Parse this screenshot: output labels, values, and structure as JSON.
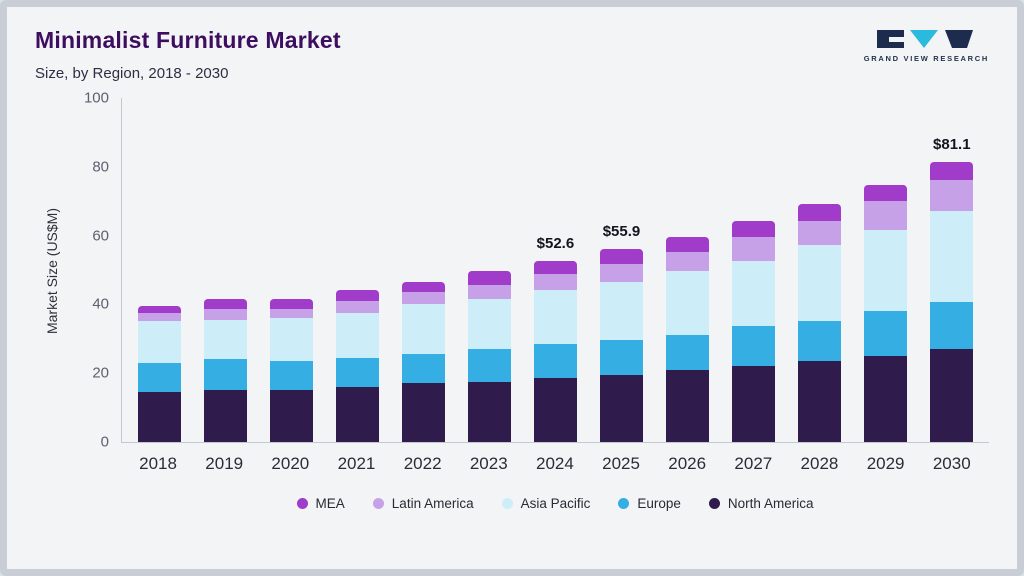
{
  "header": {
    "title": "Minimalist Furniture Market",
    "subtitle": "Size, by Region, 2018 - 2030",
    "logo_text": "GRAND VIEW RESEARCH"
  },
  "chart_data": {
    "type": "bar",
    "stacked": true,
    "title": "Minimalist Furniture Market Size, by Region, 2018 - 2030",
    "xlabel": "",
    "ylabel": "Market Size (US$M)",
    "ylim": [
      0,
      100
    ],
    "yticks": [
      0,
      20,
      40,
      60,
      80,
      100
    ],
    "grid": false,
    "legend_position": "bottom",
    "categories": [
      "2018",
      "2019",
      "2020",
      "2021",
      "2022",
      "2023",
      "2024",
      "2025",
      "2026",
      "2027",
      "2028",
      "2029",
      "2030"
    ],
    "series": [
      {
        "name": "North America",
        "color": "#2f1b4c",
        "values": [
          14.5,
          15.0,
          15.0,
          16.0,
          17.0,
          17.5,
          18.5,
          19.5,
          21.0,
          22.0,
          23.5,
          25.0,
          27.0
        ]
      },
      {
        "name": "Europe",
        "color": "#35aee3",
        "values": [
          8.5,
          9.0,
          8.5,
          8.5,
          8.5,
          9.5,
          10.0,
          10.0,
          10.0,
          11.5,
          11.5,
          13.0,
          13.5
        ]
      },
      {
        "name": "Asia Pacific",
        "color": "#cdeef8",
        "values": [
          12.0,
          11.5,
          12.5,
          13.0,
          14.5,
          14.5,
          15.5,
          17.0,
          18.5,
          19.0,
          22.0,
          23.5,
          26.5
        ]
      },
      {
        "name": "Latin America",
        "color": "#c6a1e8",
        "values": [
          2.5,
          3.0,
          2.5,
          3.5,
          3.5,
          4.0,
          4.6,
          5.0,
          5.5,
          7.0,
          7.0,
          8.5,
          9.0
        ]
      },
      {
        "name": "MEA",
        "color": "#a03cc9",
        "values": [
          2.0,
          3.0,
          3.0,
          3.0,
          3.0,
          4.0,
          4.0,
          4.4,
          4.5,
          4.5,
          5.0,
          4.5,
          5.1
        ]
      }
    ],
    "annotations": [
      {
        "category": "2024",
        "label": "$52.6"
      },
      {
        "category": "2025",
        "label": "$55.9"
      },
      {
        "category": "2030",
        "label": "$81.1"
      }
    ],
    "legend": [
      "MEA",
      "Latin America",
      "Asia Pacific",
      "Europe",
      "North America"
    ]
  }
}
